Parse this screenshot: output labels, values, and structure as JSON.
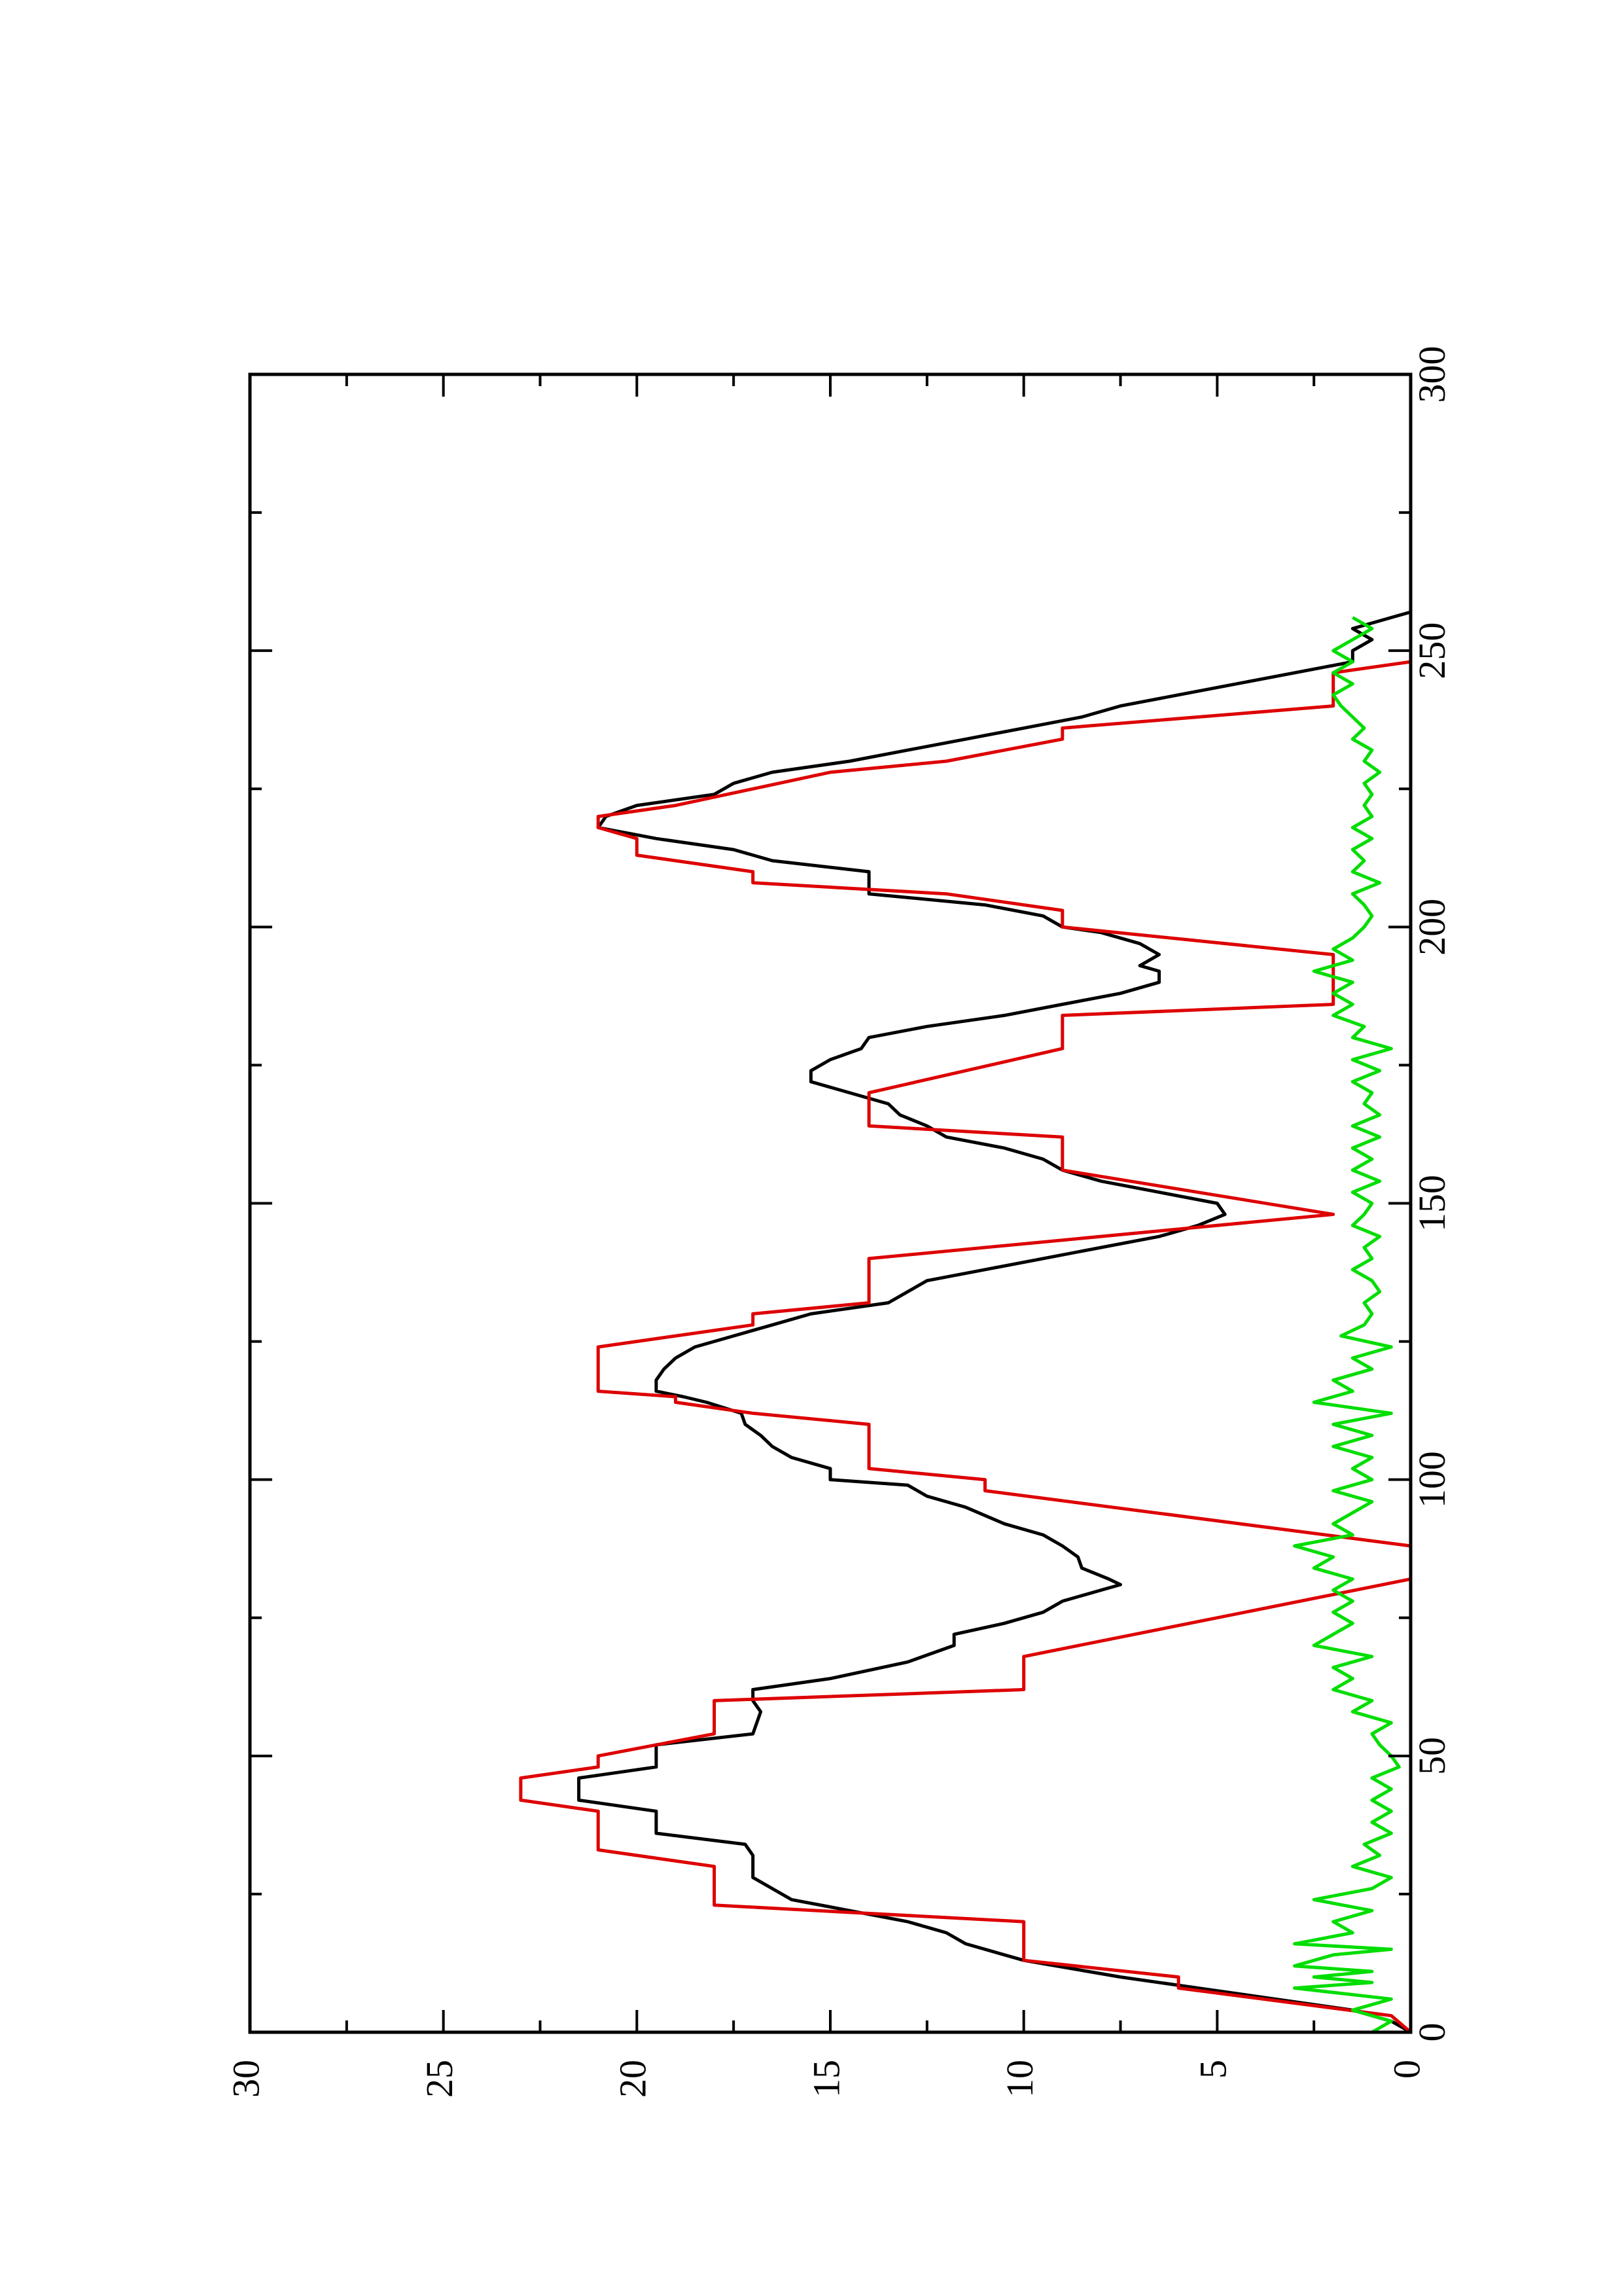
{
  "chart_data": {
    "type": "line",
    "title": "",
    "xlabel": "",
    "ylabel": "",
    "xlim": [
      0,
      300
    ],
    "ylim": [
      0,
      30
    ],
    "x_ticks": [
      "0",
      "50",
      "100",
      "150",
      "200",
      "250",
      "300"
    ],
    "y_ticks": [
      "0",
      "5",
      "10",
      "15",
      "20",
      "25",
      "30"
    ],
    "orientation": "rotated 90° counter-clockwise (x axis runs vertically, y axis horizontally)",
    "grid": false,
    "legend": "none",
    "series": [
      {
        "color": "#000000",
        "points": [
          [
            0,
            0
          ],
          [
            2,
            0.5
          ],
          [
            4,
            1.5
          ],
          [
            6,
            3.5
          ],
          [
            8,
            5.5
          ],
          [
            10,
            7.5
          ],
          [
            13,
            10
          ],
          [
            16,
            11.5
          ],
          [
            18,
            12
          ],
          [
            20,
            13
          ],
          [
            22,
            14.5
          ],
          [
            24,
            16
          ],
          [
            26,
            16.5
          ],
          [
            28,
            17
          ],
          [
            32,
            17
          ],
          [
            34,
            17.2
          ],
          [
            36,
            19.5
          ],
          [
            40,
            19.5
          ],
          [
            42,
            21.5
          ],
          [
            46,
            21.5
          ],
          [
            48,
            19.5
          ],
          [
            52,
            19.5
          ],
          [
            54,
            17
          ],
          [
            58,
            16.8
          ],
          [
            60,
            17
          ],
          [
            62,
            17
          ],
          [
            64,
            15
          ],
          [
            67,
            13
          ],
          [
            70,
            11.8
          ],
          [
            72,
            11.8
          ],
          [
            74,
            10.5
          ],
          [
            76,
            9.5
          ],
          [
            78,
            9
          ],
          [
            80,
            8
          ],
          [
            81,
            7.5
          ],
          [
            82,
            7.8
          ],
          [
            84,
            8.5
          ],
          [
            86,
            8.6
          ],
          [
            88,
            9
          ],
          [
            90,
            9.5
          ],
          [
            92,
            10.5
          ],
          [
            95,
            11.5
          ],
          [
            97,
            12.5
          ],
          [
            99,
            13
          ],
          [
            100,
            15
          ],
          [
            102,
            15
          ],
          [
            104,
            16
          ],
          [
            106,
            16.5
          ],
          [
            108,
            16.8
          ],
          [
            110,
            17.2
          ],
          [
            112,
            17.3
          ],
          [
            114,
            18.2
          ],
          [
            115,
            18.8
          ],
          [
            116,
            19.5
          ],
          [
            118,
            19.5
          ],
          [
            120,
            19.3
          ],
          [
            122,
            19
          ],
          [
            124,
            18.5
          ],
          [
            126,
            17.5
          ],
          [
            128,
            16.5
          ],
          [
            130,
            15.5
          ],
          [
            132,
            13.5
          ],
          [
            134,
            13
          ],
          [
            136,
            12.5
          ],
          [
            138,
            11
          ],
          [
            140,
            9.5
          ],
          [
            142,
            8
          ],
          [
            144,
            6.5
          ],
          [
            146,
            5.5
          ],
          [
            148,
            4.8
          ],
          [
            150,
            5
          ],
          [
            152,
            6.5
          ],
          [
            154,
            8
          ],
          [
            156,
            9
          ],
          [
            158,
            9.5
          ],
          [
            160,
            10.5
          ],
          [
            162,
            12
          ],
          [
            164,
            12.5
          ],
          [
            166,
            13.2
          ],
          [
            168,
            13.5
          ],
          [
            170,
            14.5
          ],
          [
            172,
            15.5
          ],
          [
            174,
            15.5
          ],
          [
            176,
            15
          ],
          [
            178,
            14.2
          ],
          [
            180,
            14
          ],
          [
            182,
            12.5
          ],
          [
            184,
            10.5
          ],
          [
            186,
            9
          ],
          [
            188,
            7.5
          ],
          [
            190,
            6.5
          ],
          [
            192,
            6.5
          ],
          [
            193,
            7
          ],
          [
            195,
            6.5
          ],
          [
            197,
            7
          ],
          [
            199,
            8
          ],
          [
            200,
            9
          ],
          [
            202,
            9.5
          ],
          [
            204,
            11
          ],
          [
            206,
            14
          ],
          [
            210,
            14
          ],
          [
            212,
            16.5
          ],
          [
            214,
            17.5
          ],
          [
            216,
            19.5
          ],
          [
            218,
            21
          ],
          [
            220,
            20.8
          ],
          [
            222,
            20
          ],
          [
            224,
            18
          ],
          [
            226,
            17.5
          ],
          [
            228,
            16.5
          ],
          [
            230,
            14.5
          ],
          [
            232,
            13
          ],
          [
            234,
            11.5
          ],
          [
            236,
            10
          ],
          [
            238,
            8.5
          ],
          [
            240,
            7.5
          ],
          [
            242,
            6
          ],
          [
            244,
            4.5
          ],
          [
            246,
            3
          ],
          [
            248,
            1.5
          ],
          [
            250,
            1.5
          ],
          [
            252,
            1
          ],
          [
            254,
            1.5
          ],
          [
            256,
            0.5
          ],
          [
            257,
            0
          ]
        ]
      },
      {
        "color": "#dd0000",
        "points": [
          [
            0,
            0
          ],
          [
            3,
            0.5
          ],
          [
            8,
            6
          ],
          [
            10,
            6
          ],
          [
            13,
            10
          ],
          [
            20,
            10
          ],
          [
            23,
            18
          ],
          [
            30,
            18
          ],
          [
            33,
            21
          ],
          [
            40,
            21
          ],
          [
            42,
            23
          ],
          [
            46,
            23
          ],
          [
            48,
            21
          ],
          [
            50,
            21
          ],
          [
            54,
            18
          ],
          [
            60,
            18
          ],
          [
            62,
            10
          ],
          [
            68,
            10
          ],
          [
            82,
            0
          ],
          [
            84,
            0
          ],
          [
            88,
            0
          ],
          [
            98,
            11
          ],
          [
            100,
            11
          ],
          [
            102,
            14
          ],
          [
            110,
            14
          ],
          [
            112,
            17
          ],
          [
            114,
            19
          ],
          [
            115,
            19
          ],
          [
            116,
            21
          ],
          [
            124,
            21
          ],
          [
            126,
            19
          ],
          [
            128,
            17
          ],
          [
            130,
            17
          ],
          [
            132,
            14
          ],
          [
            140,
            14
          ],
          [
            148,
            2
          ],
          [
            156,
            9
          ],
          [
            162,
            9
          ],
          [
            164,
            14
          ],
          [
            170,
            14
          ],
          [
            178,
            9
          ],
          [
            184,
            9
          ],
          [
            186,
            2
          ],
          [
            195,
            2
          ],
          [
            200,
            9
          ],
          [
            203,
            9
          ],
          [
            206,
            12
          ],
          [
            208,
            17
          ],
          [
            210,
            17
          ],
          [
            213,
            20
          ],
          [
            216,
            20
          ],
          [
            218,
            21
          ],
          [
            220,
            21
          ],
          [
            222,
            19
          ],
          [
            225,
            17
          ],
          [
            228,
            15
          ],
          [
            230,
            12
          ],
          [
            234,
            9
          ],
          [
            236,
            9
          ],
          [
            240,
            2
          ],
          [
            246,
            2
          ],
          [
            248,
            0
          ]
        ]
      },
      {
        "color": "#00dd00",
        "points": [
          [
            0,
            1
          ],
          [
            2,
            0.5
          ],
          [
            4,
            1.5
          ],
          [
            6,
            0.5
          ],
          [
            8,
            3
          ],
          [
            9,
            1
          ],
          [
            10,
            2.5
          ],
          [
            11,
            1
          ],
          [
            12,
            3
          ],
          [
            14,
            2
          ],
          [
            15,
            0.5
          ],
          [
            16,
            3
          ],
          [
            18,
            1.5
          ],
          [
            20,
            2
          ],
          [
            22,
            1
          ],
          [
            24,
            2.5
          ],
          [
            26,
            1
          ],
          [
            28,
            0.5
          ],
          [
            30,
            1.5
          ],
          [
            32,
            0.8
          ],
          [
            34,
            1.2
          ],
          [
            36,
            0.5
          ],
          [
            38,
            1
          ],
          [
            40,
            0.5
          ],
          [
            42,
            1
          ],
          [
            44,
            0.5
          ],
          [
            46,
            1
          ],
          [
            48,
            0.3
          ],
          [
            50,
            0.5
          ],
          [
            52,
            0.8
          ],
          [
            54,
            1
          ],
          [
            56,
            0.5
          ],
          [
            58,
            1.5
          ],
          [
            60,
            1
          ],
          [
            62,
            2
          ],
          [
            64,
            1.5
          ],
          [
            66,
            2
          ],
          [
            68,
            1
          ],
          [
            70,
            2.5
          ],
          [
            72,
            2
          ],
          [
            74,
            1.5
          ],
          [
            76,
            2
          ],
          [
            78,
            1.5
          ],
          [
            80,
            2
          ],
          [
            82,
            1.5
          ],
          [
            84,
            2.5
          ],
          [
            86,
            2
          ],
          [
            88,
            3
          ],
          [
            90,
            1.5
          ],
          [
            92,
            2
          ],
          [
            94,
            1.5
          ],
          [
            96,
            1
          ],
          [
            98,
            2
          ],
          [
            100,
            1
          ],
          [
            102,
            1.5
          ],
          [
            104,
            1
          ],
          [
            106,
            2
          ],
          [
            108,
            1
          ],
          [
            110,
            2
          ],
          [
            112,
            0.5
          ],
          [
            114,
            2.5
          ],
          [
            116,
            1.5
          ],
          [
            118,
            2
          ],
          [
            120,
            1
          ],
          [
            122,
            1.5
          ],
          [
            124,
            0.5
          ],
          [
            126,
            1.8
          ],
          [
            128,
            1.2
          ],
          [
            130,
            1
          ],
          [
            132,
            1.2
          ],
          [
            134,
            0.8
          ],
          [
            136,
            1
          ],
          [
            138,
            1.5
          ],
          [
            140,
            1
          ],
          [
            142,
            1.2
          ],
          [
            144,
            0.8
          ],
          [
            146,
            1.5
          ],
          [
            148,
            1.2
          ],
          [
            150,
            1
          ],
          [
            152,
            1.5
          ],
          [
            154,
            0.8
          ],
          [
            156,
            1.5
          ],
          [
            158,
            1
          ],
          [
            160,
            1.5
          ],
          [
            162,
            0.8
          ],
          [
            164,
            1.5
          ],
          [
            166,
            0.8
          ],
          [
            168,
            1.2
          ],
          [
            170,
            1
          ],
          [
            172,
            1.5
          ],
          [
            174,
            0.8
          ],
          [
            176,
            1.5
          ],
          [
            178,
            0.5
          ],
          [
            180,
            1.5
          ],
          [
            182,
            1.2
          ],
          [
            184,
            2
          ],
          [
            186,
            1.5
          ],
          [
            188,
            2
          ],
          [
            190,
            1.5
          ],
          [
            192,
            2.5
          ],
          [
            194,
            1.5
          ],
          [
            196,
            2
          ],
          [
            198,
            1.5
          ],
          [
            200,
            1.2
          ],
          [
            202,
            1
          ],
          [
            204,
            1.2
          ],
          [
            206,
            1.5
          ],
          [
            208,
            0.8
          ],
          [
            210,
            1.5
          ],
          [
            212,
            1.2
          ],
          [
            214,
            1.5
          ],
          [
            216,
            1
          ],
          [
            218,
            1.5
          ],
          [
            220,
            1
          ],
          [
            222,
            1.2
          ],
          [
            224,
            1
          ],
          [
            226,
            1.2
          ],
          [
            228,
            0.8
          ],
          [
            230,
            1.2
          ],
          [
            232,
            1
          ],
          [
            234,
            1.5
          ],
          [
            236,
            1.2
          ],
          [
            238,
            1.5
          ],
          [
            240,
            1.8
          ],
          [
            242,
            2
          ],
          [
            244,
            1.5
          ],
          [
            246,
            2
          ],
          [
            248,
            1.5
          ],
          [
            250,
            2
          ],
          [
            252,
            1.5
          ],
          [
            254,
            1
          ],
          [
            256,
            1.5
          ]
        ]
      }
    ]
  }
}
